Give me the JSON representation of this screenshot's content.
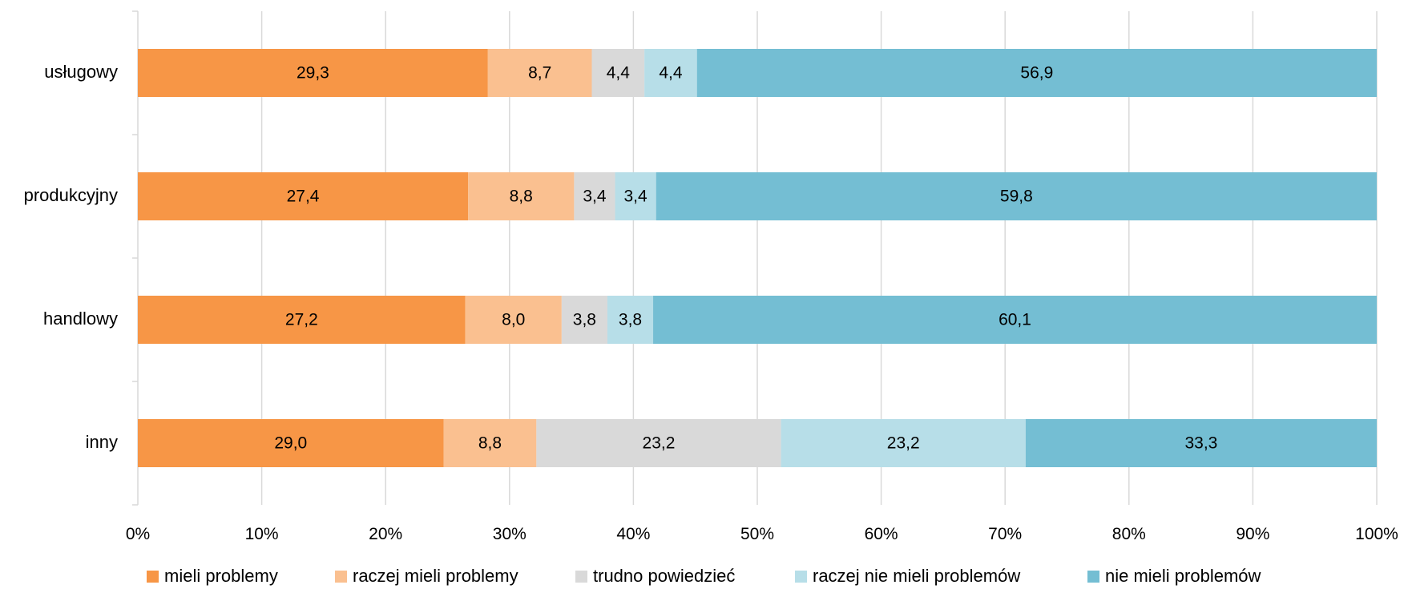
{
  "chart_data": {
    "type": "bar",
    "orientation": "horizontal",
    "stacking": "percent",
    "title": "",
    "xlabel": "",
    "ylabel": "",
    "categories": [
      "usługowy",
      "produkcyjny",
      "handlowy",
      "inny"
    ],
    "x_ticks": [
      "0%",
      "10%",
      "20%",
      "30%",
      "40%",
      "50%",
      "60%",
      "70%",
      "80%",
      "90%",
      "100%"
    ],
    "xlim": [
      0,
      100
    ],
    "grid": true,
    "legend_position": "bottom",
    "series": [
      {
        "name": "mieli problemy",
        "color": "#F79646",
        "values": [
          29.3,
          27.4,
          27.2,
          29.0
        ],
        "labels": [
          "29,3",
          "27,4",
          "27,2",
          "29,0"
        ]
      },
      {
        "name": "raczej mieli problemy",
        "color": "#FAC090",
        "values": [
          8.7,
          8.8,
          8.0,
          8.8
        ],
        "labels": [
          "8,7",
          "8,8",
          "8,0",
          "8,8"
        ]
      },
      {
        "name": "trudno powiedzieć",
        "color": "#D9D9D9",
        "values": [
          4.4,
          3.4,
          3.8,
          23.2
        ],
        "labels": [
          "4,4",
          "3,4",
          "3,8",
          "23,2"
        ]
      },
      {
        "name": "raczej nie mieli problemów",
        "color": "#B7DEE8",
        "values": [
          4.4,
          3.4,
          3.8,
          23.2
        ],
        "labels": [
          "4,4",
          "3,4",
          "3,8",
          "23,2"
        ]
      },
      {
        "name": "nie mieli problemów",
        "color": "#74BED3",
        "values": [
          56.9,
          59.8,
          60.1,
          33.3
        ],
        "labels": [
          "56,9",
          "59,8",
          "60,1",
          "33,3"
        ]
      }
    ]
  }
}
